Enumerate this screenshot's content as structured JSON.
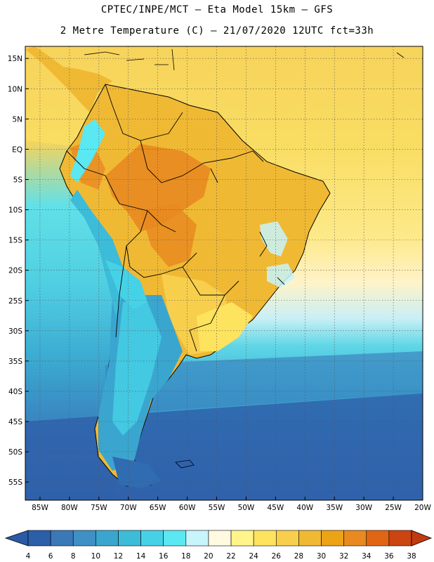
{
  "header": {
    "line1": "CPTEC/INPE/MCT –  Eta Model 15km – GFS",
    "line2": "2 Metre Temperature (C) – 21/07/2020 12UTC fct=33h"
  },
  "axes": {
    "lat_labels": [
      "15N",
      "10N",
      "5N",
      "EQ",
      "5S",
      "10S",
      "15S",
      "20S",
      "25S",
      "30S",
      "35S",
      "40S",
      "45S",
      "50S",
      "55S"
    ],
    "lon_labels": [
      "85W",
      "80W",
      "75W",
      "70W",
      "65W",
      "60W",
      "55W",
      "50W",
      "45W",
      "40W",
      "35W",
      "30W",
      "25W",
      "20W"
    ]
  },
  "colorbar": {
    "labels": [
      "4",
      "6",
      "8",
      "10",
      "12",
      "14",
      "16",
      "18",
      "20",
      "22",
      "24",
      "26",
      "28",
      "30",
      "32",
      "34",
      "36",
      "38"
    ],
    "colors": [
      "#2c5fa8",
      "#3b78b7",
      "#3f90c4",
      "#3aa6cf",
      "#3cbcd9",
      "#46d2e6",
      "#5ae8f2",
      "#c8f4fb",
      "#fffae0",
      "#fff58a",
      "#fde35e",
      "#f7cf4d",
      "#f0b934",
      "#eca315",
      "#e88a20",
      "#e06614",
      "#cc4410"
    ],
    "left_arrow_color": "#2a5aa6",
    "right_arrow_color": "#c03c10"
  }
}
